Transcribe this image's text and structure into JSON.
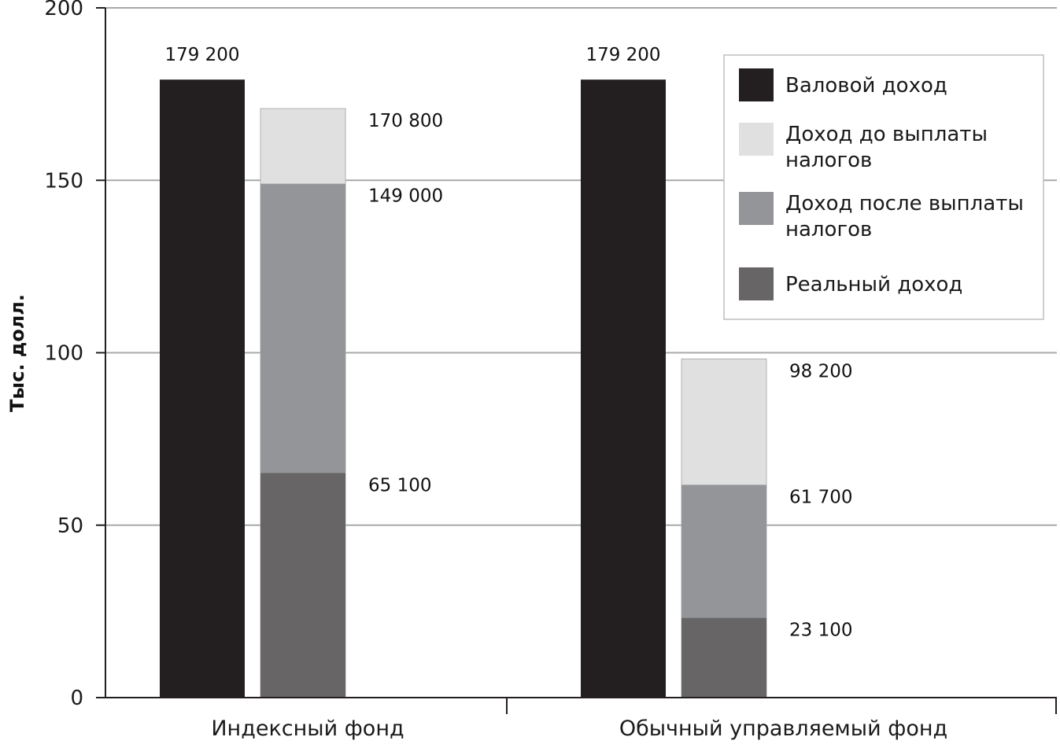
{
  "chart_data": {
    "type": "bar",
    "ylabel": "Тыс. долл.",
    "ylim": [
      0,
      200
    ],
    "yticks": [
      0,
      50,
      100,
      150,
      200
    ],
    "grid": true,
    "legend_position": "top-right",
    "categories": [
      "Индексный фонд",
      "Обычный управляемый фонд"
    ],
    "series": [
      {
        "name": "Валовой доход",
        "color": "#231f20",
        "values": [
          179.2,
          179.2
        ],
        "labels": [
          "179 200",
          "179 200"
        ]
      },
      {
        "name": "Доход до выплаты налогов",
        "color": "#e0e0e0",
        "values": [
          170.8,
          98.2
        ],
        "labels": [
          "170 800",
          "98 200"
        ]
      },
      {
        "name": "Доход после выплаты налогов",
        "color": "#939598",
        "values": [
          149.0,
          61.7
        ],
        "labels": [
          "149 000",
          "61 700"
        ]
      },
      {
        "name": "Реальный доход",
        "color": "#676566",
        "values": [
          65.1,
          23.1
        ],
        "labels": [
          "65 100",
          "23 100"
        ]
      }
    ],
    "legend": [
      {
        "lines": [
          "Валовой доход"
        ],
        "color": "#231f20"
      },
      {
        "lines": [
          "Доход до выплаты",
          "налогов"
        ],
        "color": "#e0e0e0"
      },
      {
        "lines": [
          "Доход после выплаты",
          "налогов"
        ],
        "color": "#939598"
      },
      {
        "lines": [
          "Реальный доход"
        ],
        "color": "#676566"
      }
    ]
  }
}
